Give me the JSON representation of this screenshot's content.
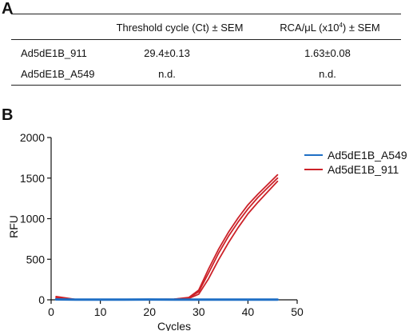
{
  "panel_a": {
    "label": "A",
    "columns": [
      "",
      "Threshold cycle (Ct) ± SEM",
      "RCA/μL (x10",
      "4",
      ") ± SEM"
    ],
    "rows": [
      {
        "name": "Ad5dE1B_911",
        "ct": "29.4±0.13",
        "rca": "1.63±0.08"
      },
      {
        "name": "Ad5dE1B_A549",
        "ct": "n.d.",
        "rca": "n.d."
      }
    ]
  },
  "panel_b": {
    "label": "B"
  },
  "chart_data": {
    "type": "line",
    "xlabel": "Cycles",
    "ylabel": "RFU",
    "xlim": [
      0,
      50
    ],
    "ylim": [
      0,
      2000
    ],
    "xticks": [
      0,
      10,
      20,
      30,
      40,
      50
    ],
    "yticks": [
      0,
      500,
      1000,
      1500,
      2000
    ],
    "legend_position": "top-right",
    "colors": {
      "Ad5dE1B_A549": "#1f6fc5",
      "Ad5dE1B_911": "#cc2229"
    },
    "series": [
      {
        "name": "Ad5dE1B_A549",
        "x": [
          1,
          5,
          10,
          15,
          20,
          25,
          30,
          35,
          40,
          45,
          46
        ],
        "y": [
          5,
          2,
          3,
          2,
          4,
          3,
          2,
          3,
          2,
          3,
          3
        ]
      },
      {
        "name": "Ad5dE1B_911",
        "x": [
          1,
          5,
          10,
          15,
          20,
          25,
          28,
          30,
          32,
          34,
          36,
          38,
          40,
          42,
          44,
          46
        ],
        "y": [
          40,
          5,
          4,
          3,
          5,
          8,
          30,
          120,
          380,
          620,
          830,
          1010,
          1170,
          1300,
          1420,
          1540
        ]
      },
      {
        "name": "Ad5dE1B_911",
        "x": [
          1,
          5,
          10,
          15,
          20,
          25,
          28,
          30,
          32,
          34,
          36,
          38,
          40,
          42,
          44,
          46
        ],
        "y": [
          30,
          4,
          3,
          3,
          4,
          7,
          25,
          100,
          330,
          570,
          780,
          960,
          1120,
          1260,
          1380,
          1500
        ]
      },
      {
        "name": "Ad5dE1B_911",
        "x": [
          1,
          5,
          10,
          15,
          20,
          25,
          28,
          30,
          32,
          34,
          36,
          38,
          40,
          42,
          44,
          46
        ],
        "y": [
          20,
          3,
          3,
          2,
          4,
          6,
          18,
          70,
          260,
          490,
          700,
          890,
          1060,
          1200,
          1330,
          1460
        ]
      }
    ]
  }
}
